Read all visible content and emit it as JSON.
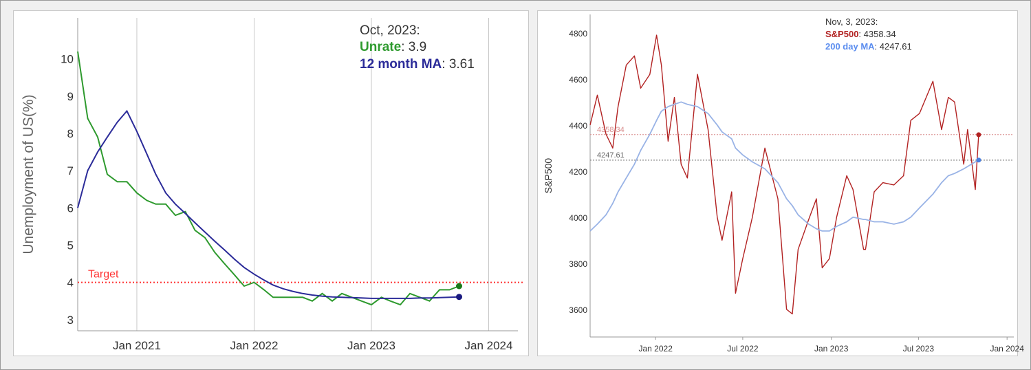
{
  "chart_data": [
    {
      "type": "line",
      "title": "",
      "xlabel": "",
      "ylabel": "Unemployment of US(%)",
      "ylim": [
        2.7,
        11.1
      ],
      "y_ticks": [
        "3",
        "4",
        "5",
        "6",
        "7",
        "8",
        "9",
        "10"
      ],
      "x_ticks": [
        "Jan 2021",
        "Jan 2022",
        "Jan 2023",
        "Jan 2024"
      ],
      "x_tick_values": [
        "2021-01",
        "2022-01",
        "2023-01",
        "2024-01"
      ],
      "xlim": [
        "2020-07",
        "2024-04"
      ],
      "grid": "vertical",
      "annotation": {
        "date": "Oct, 2023:",
        "unrate_label": "Unrate",
        "unrate_value": ": 3.9",
        "ma_label": "12 month MA",
        "ma_value": ": 3.61"
      },
      "target": {
        "label": "Target",
        "value": 4.0,
        "color": "#ff3333"
      },
      "x": [
        "2020-07",
        "2020-08",
        "2020-09",
        "2020-10",
        "2020-11",
        "2020-12",
        "2021-01",
        "2021-02",
        "2021-03",
        "2021-04",
        "2021-05",
        "2021-06",
        "2021-07",
        "2021-08",
        "2021-09",
        "2021-10",
        "2021-11",
        "2021-12",
        "2022-01",
        "2022-02",
        "2022-03",
        "2022-04",
        "2022-05",
        "2022-06",
        "2022-07",
        "2022-08",
        "2022-09",
        "2022-10",
        "2022-11",
        "2022-12",
        "2023-01",
        "2023-02",
        "2023-03",
        "2023-04",
        "2023-05",
        "2023-06",
        "2023-07",
        "2023-08",
        "2023-09",
        "2023-10"
      ],
      "series": [
        {
          "name": "Unrate",
          "color": "#2e9a2e",
          "values": [
            10.2,
            8.4,
            7.9,
            6.9,
            6.7,
            6.7,
            6.4,
            6.2,
            6.1,
            6.1,
            5.8,
            5.9,
            5.4,
            5.2,
            4.8,
            4.5,
            4.2,
            3.9,
            4.0,
            3.8,
            3.6,
            3.6,
            3.6,
            3.6,
            3.5,
            3.7,
            3.5,
            3.7,
            3.6,
            3.5,
            3.4,
            3.6,
            3.5,
            3.4,
            3.7,
            3.6,
            3.5,
            3.8,
            3.8,
            3.9
          ]
        },
        {
          "name": "12 month MA",
          "color": "#2b2b99",
          "values": [
            6.0,
            7.0,
            7.5,
            7.9,
            8.3,
            8.6,
            8.05,
            7.45,
            6.9,
            6.4,
            6.1,
            5.85,
            5.6,
            5.35,
            5.1,
            4.87,
            4.62,
            4.4,
            4.22,
            4.06,
            3.93,
            3.83,
            3.76,
            3.7,
            3.66,
            3.63,
            3.61,
            3.6,
            3.59,
            3.58,
            3.57,
            3.57,
            3.57,
            3.57,
            3.57,
            3.58,
            3.58,
            3.59,
            3.6,
            3.61
          ]
        }
      ]
    },
    {
      "type": "line",
      "title": "",
      "xlabel": "",
      "ylabel": "S&P500",
      "ylim": [
        3480,
        4880
      ],
      "y_ticks": [
        "3600",
        "3800",
        "4000",
        "4200",
        "4400",
        "4600",
        "4800"
      ],
      "x_ticks": [
        "Jan 2022",
        "Jul 2022",
        "Jan 2023",
        "Jul 2023",
        "Jan 2024"
      ],
      "x_tick_values": [
        "2022-01",
        "2022-07",
        "2023-01",
        "2023-07",
        "2024-01"
      ],
      "xlim": [
        "2021-08-18",
        "2024-01-15"
      ],
      "grid": "none",
      "annotation": {
        "date": "Nov, 3, 2023:",
        "sp_label": "S&P500",
        "sp_value": ": 4358.34",
        "ma_label": "200 day MA",
        "ma_value": ": 4247.61"
      },
      "ref_lines": [
        {
          "label": "4358.34",
          "value": 4358.34,
          "color": "#d98c8c"
        },
        {
          "label": "4247.61",
          "value": 4247.61,
          "color": "#666666"
        }
      ],
      "x": [
        "2021-08-18",
        "2021-09-02",
        "2021-09-20",
        "2021-10-04",
        "2021-10-15",
        "2021-11-01",
        "2021-11-18",
        "2021-12-01",
        "2021-12-20",
        "2022-01-03",
        "2022-01-13",
        "2022-01-27",
        "2022-02-09",
        "2022-02-23",
        "2022-03-08",
        "2022-03-29",
        "2022-04-20",
        "2022-05-09",
        "2022-05-19",
        "2022-06-08",
        "2022-06-16",
        "2022-07-01",
        "2022-07-21",
        "2022-08-16",
        "2022-09-12",
        "2022-09-30",
        "2022-10-12",
        "2022-10-24",
        "2022-11-15",
        "2022-12-01",
        "2022-12-13",
        "2022-12-28",
        "2023-01-12",
        "2023-02-02",
        "2023-02-15",
        "2023-03-09",
        "2023-03-13",
        "2023-03-31",
        "2023-04-18",
        "2023-05-11",
        "2023-05-31",
        "2023-06-15",
        "2023-07-03",
        "2023-07-31",
        "2023-08-18",
        "2023-09-01",
        "2023-09-14",
        "2023-10-03",
        "2023-10-11",
        "2023-10-27",
        "2023-11-03"
      ],
      "series": [
        {
          "name": "S&P500",
          "color": "#b22222",
          "values": [
            4400,
            4530,
            4360,
            4300,
            4480,
            4660,
            4700,
            4560,
            4620,
            4790,
            4660,
            4330,
            4520,
            4230,
            4170,
            4620,
            4380,
            4000,
            3900,
            4110,
            3670,
            3820,
            4000,
            4300,
            4080,
            3600,
            3580,
            3860,
            3990,
            4080,
            3780,
            3820,
            4000,
            4180,
            4120,
            3860,
            3860,
            4110,
            4150,
            4140,
            4180,
            4420,
            4450,
            4590,
            4380,
            4520,
            4500,
            4230,
            4380,
            4120,
            4358
          ]
        },
        {
          "name": "200 day MA",
          "color": "#99b3e6",
          "values": [
            3940,
            3970,
            4010,
            4060,
            4110,
            4170,
            4230,
            4290,
            4360,
            4420,
            4460,
            4480,
            4490,
            4500,
            4490,
            4480,
            4450,
            4400,
            4370,
            4340,
            4300,
            4270,
            4240,
            4210,
            4150,
            4080,
            4050,
            4010,
            3970,
            3950,
            3940,
            3940,
            3960,
            3980,
            4000,
            3990,
            3990,
            3980,
            3980,
            3970,
            3980,
            4000,
            4040,
            4100,
            4150,
            4180,
            4190,
            4210,
            4220,
            4240,
            4248
          ]
        }
      ]
    }
  ]
}
